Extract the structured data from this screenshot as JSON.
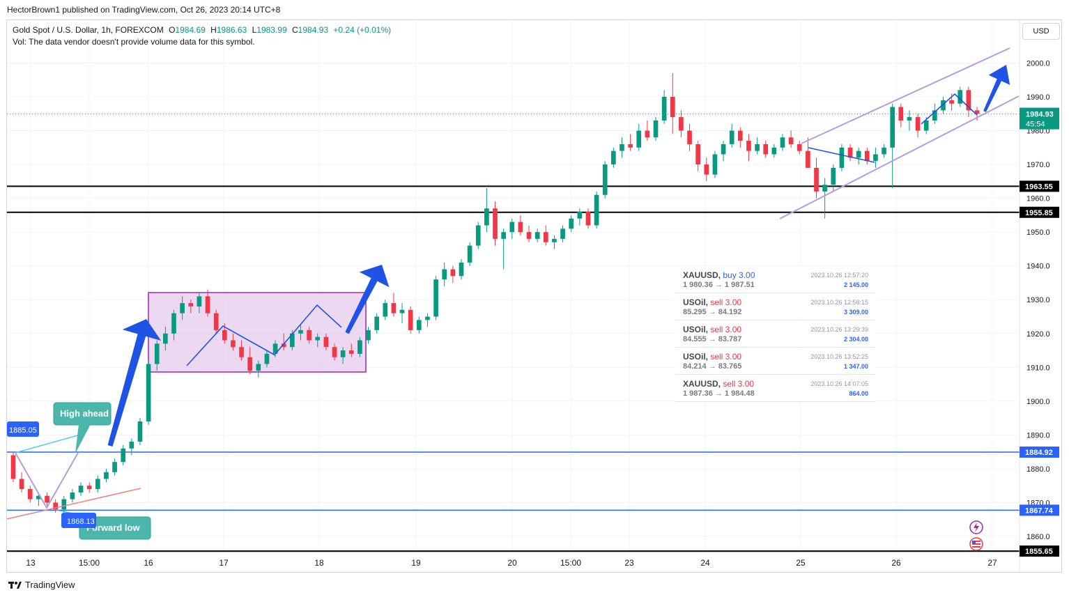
{
  "header": {
    "published_text": "HectorBrown1 published on TradingView.com, Oct 26, 2023 20:14 UTC+8"
  },
  "legend": {
    "symbol": "Gold Spot / U.S. Dollar, 1h, FOREXCOM",
    "open": "1984.69",
    "high": "1986.63",
    "low": "1983.99",
    "close": "1984.93",
    "change": "+0.24 (+0.01%)",
    "volume_note": "Vol: The data vendor doesn't provide volume data for this symbol."
  },
  "currency_button": "USD",
  "trades": [
    {
      "symbol": "XAUUSD",
      "side": "buy 3.00",
      "prices": "1 980.36 → 1 987.51",
      "time": "2023.10.26 12:57:20",
      "profit": "2 145.00"
    },
    {
      "symbol": "USOil",
      "side": "sell 3.00",
      "prices": "85.295 → 84.192",
      "time": "2023.10.26 12:58:15",
      "profit": "3 309.00"
    },
    {
      "symbol": "USOil",
      "side": "sell 3.00",
      "prices": "84.555 → 83.787",
      "time": "2023.10.26 13:29:39",
      "profit": "2 304.00"
    },
    {
      "symbol": "USOil",
      "side": "sell 3.00",
      "prices": "84.214 → 83.765",
      "time": "2023.10.26 13:52:25",
      "profit": "1 347.00"
    },
    {
      "symbol": "XAUUSD",
      "side": "sell 3.00",
      "prices": "1 987.36 → 1 984.48",
      "time": "2023.10.26 14:07:05",
      "profit": "864.00"
    }
  ],
  "footer": {
    "brand": "TradingView"
  },
  "colors": {
    "up": "#089981",
    "down": "#f23645",
    "blue_line": "#2962ff",
    "channel": "#b39ddb",
    "box_fill": "#e1bee7",
    "box_stroke": "#9c27b0",
    "callout": "#4db6ac",
    "arrow": "#1e53e5"
  },
  "chart_data": {
    "type": "candlestick",
    "title": "Gold Spot / U.S. Dollar, 1h, FOREXCOM",
    "x_ticks": [
      "13",
      "15:00",
      "16",
      "17",
      "18",
      "19",
      "20",
      "15:00",
      "23",
      "24",
      "25",
      "26",
      "27"
    ],
    "y_ticks": [
      1860,
      1870,
      1880,
      1890,
      1900,
      1910,
      1920,
      1930,
      1940,
      1950,
      1960,
      1970,
      1980,
      1990,
      2000
    ],
    "ylim": [
      1854,
      2014
    ],
    "current_price": {
      "value": "1984.93",
      "countdown": "45:54"
    },
    "horizontal_levels": [
      {
        "value": 1963.55,
        "label": "1963.55",
        "color": "#000000"
      },
      {
        "value": 1955.85,
        "label": "1955.85",
        "color": "#000000"
      },
      {
        "value": 1884.92,
        "label": "1884.92",
        "color": "#2962ff"
      },
      {
        "value": 1867.74,
        "label": "1867.74",
        "color": "#2962ff"
      },
      {
        "value": 1855.65,
        "label": "1855.65",
        "color": "#000000"
      }
    ],
    "annotations": {
      "high_callout": "High ahead",
      "low_callout": "Forward low",
      "high_price_tag": "1885.05",
      "low_price_tag": "1868.13"
    },
    "candles_ohlc": [
      [
        1884,
        1885,
        1876,
        1877
      ],
      [
        1877,
        1879,
        1873,
        1874
      ],
      [
        1874,
        1875,
        1870,
        1871
      ],
      [
        1871,
        1873,
        1869,
        1872
      ],
      [
        1872,
        1873,
        1869,
        1870
      ],
      [
        1870,
        1871,
        1867,
        1868
      ],
      [
        1868,
        1872,
        1867,
        1871
      ],
      [
        1871,
        1874,
        1870,
        1873
      ],
      [
        1873,
        1876,
        1872,
        1875
      ],
      [
        1875,
        1876,
        1873,
        1874
      ],
      [
        1874,
        1878,
        1873,
        1877
      ],
      [
        1877,
        1880,
        1876,
        1879
      ],
      [
        1879,
        1883,
        1878,
        1882
      ],
      [
        1882,
        1887,
        1881,
        1886
      ],
      [
        1886,
        1889,
        1884,
        1888
      ],
      [
        1888,
        1895,
        1887,
        1894
      ],
      [
        1894,
        1912,
        1893,
        1911
      ],
      [
        1911,
        1918,
        1909,
        1917
      ],
      [
        1917,
        1922,
        1915,
        1920
      ],
      [
        1920,
        1927,
        1918,
        1926
      ],
      [
        1926,
        1931,
        1924,
        1929
      ],
      [
        1929,
        1930,
        1926,
        1928
      ],
      [
        1928,
        1932,
        1926,
        1931
      ],
      [
        1931,
        1933,
        1925,
        1926
      ],
      [
        1926,
        1927,
        1920,
        1921
      ],
      [
        1921,
        1923,
        1917,
        1918
      ],
      [
        1918,
        1920,
        1915,
        1916
      ],
      [
        1916,
        1918,
        1912,
        1913
      ],
      [
        1913,
        1916,
        1908,
        1909
      ],
      [
        1909,
        1912,
        1907,
        1911
      ],
      [
        1911,
        1915,
        1910,
        1914
      ],
      [
        1914,
        1918,
        1913,
        1917
      ],
      [
        1917,
        1920,
        1915,
        1916
      ],
      [
        1916,
        1921,
        1915,
        1920
      ],
      [
        1920,
        1923,
        1918,
        1921
      ],
      [
        1921,
        1922,
        1917,
        1918
      ],
      [
        1918,
        1920,
        1916,
        1919
      ],
      [
        1919,
        1920,
        1915,
        1916
      ],
      [
        1916,
        1917,
        1912,
        1913
      ],
      [
        1913,
        1916,
        1911,
        1915
      ],
      [
        1915,
        1917,
        1913,
        1914
      ],
      [
        1914,
        1919,
        1913,
        1918
      ],
      [
        1918,
        1922,
        1917,
        1921
      ],
      [
        1921,
        1926,
        1920,
        1925
      ],
      [
        1925,
        1930,
        1924,
        1929
      ],
      [
        1929,
        1932,
        1925,
        1926
      ],
      [
        1926,
        1929,
        1923,
        1927
      ],
      [
        1927,
        1928,
        1920,
        1921
      ],
      [
        1921,
        1925,
        1920,
        1924
      ],
      [
        1924,
        1926,
        1922,
        1925
      ],
      [
        1925,
        1937,
        1924,
        1936
      ],
      [
        1936,
        1941,
        1934,
        1939
      ],
      [
        1939,
        1940,
        1935,
        1937
      ],
      [
        1937,
        1942,
        1936,
        1941
      ],
      [
        1941,
        1947,
        1940,
        1946
      ],
      [
        1946,
        1953,
        1945,
        1952
      ],
      [
        1952,
        1963,
        1950,
        1957
      ],
      [
        1957,
        1959,
        1946,
        1948
      ],
      [
        1948,
        1951,
        1939,
        1950
      ],
      [
        1950,
        1954,
        1948,
        1953
      ],
      [
        1953,
        1955,
        1949,
        1950
      ],
      [
        1950,
        1952,
        1947,
        1948
      ],
      [
        1948,
        1951,
        1947,
        1950
      ],
      [
        1950,
        1952,
        1946,
        1947
      ],
      [
        1947,
        1949,
        1945,
        1948
      ],
      [
        1948,
        1952,
        1947,
        1951
      ],
      [
        1951,
        1955,
        1950,
        1954
      ],
      [
        1954,
        1957,
        1952,
        1956
      ],
      [
        1956,
        1957,
        1951,
        1952
      ],
      [
        1952,
        1962,
        1951,
        1961
      ],
      [
        1961,
        1971,
        1960,
        1970
      ],
      [
        1970,
        1975,
        1969,
        1974
      ],
      [
        1974,
        1978,
        1972,
        1976
      ],
      [
        1976,
        1979,
        1974,
        1975
      ],
      [
        1975,
        1982,
        1974,
        1980
      ],
      [
        1980,
        1983,
        1977,
        1978
      ],
      [
        1978,
        1984,
        1977,
        1983
      ],
      [
        1983,
        1992,
        1982,
        1990
      ],
      [
        1990,
        1997,
        1979,
        1984
      ],
      [
        1984,
        1986,
        1978,
        1980
      ],
      [
        1980,
        1982,
        1974,
        1976
      ],
      [
        1976,
        1977,
        1968,
        1970
      ],
      [
        1970,
        1972,
        1965,
        1967
      ],
      [
        1967,
        1974,
        1966,
        1973
      ],
      [
        1973,
        1977,
        1971,
        1976
      ],
      [
        1976,
        1982,
        1975,
        1980
      ],
      [
        1980,
        1981,
        1975,
        1977
      ],
      [
        1977,
        1979,
        1971,
        1974
      ],
      [
        1974,
        1978,
        1973,
        1976
      ],
      [
        1976,
        1977,
        1972,
        1973
      ],
      [
        1973,
        1976,
        1972,
        1975
      ],
      [
        1975,
        1979,
        1974,
        1978
      ],
      [
        1978,
        1980,
        1975,
        1976
      ],
      [
        1976,
        1977,
        1973,
        1974
      ],
      [
        1974,
        1978,
        1972,
        1969
      ],
      [
        1969,
        1972,
        1960,
        1962
      ],
      [
        1962,
        1966,
        1954,
        1964
      ],
      [
        1964,
        1970,
        1962,
        1969
      ],
      [
        1969,
        1976,
        1968,
        1975
      ],
      [
        1975,
        1976,
        1971,
        1972
      ],
      [
        1972,
        1975,
        1970,
        1974
      ],
      [
        1974,
        1975,
        1970,
        1971
      ],
      [
        1971,
        1975,
        1969,
        1973
      ],
      [
        1973,
        1976,
        1972,
        1975
      ],
      [
        1975,
        1988,
        1963,
        1987
      ],
      [
        1987,
        1988,
        1981,
        1983
      ],
      [
        1983,
        1986,
        1980,
        1984
      ],
      [
        1984,
        1985,
        1978,
        1980
      ],
      [
        1980,
        1984,
        1979,
        1983
      ],
      [
        1983,
        1988,
        1982,
        1986
      ],
      [
        1986,
        1990,
        1985,
        1989
      ],
      [
        1989,
        1991,
        1986,
        1988
      ],
      [
        1988,
        1993,
        1987,
        1992
      ],
      [
        1992,
        1993,
        1984,
        1986
      ],
      [
        1986,
        1987,
        1983,
        1985
      ]
    ]
  }
}
